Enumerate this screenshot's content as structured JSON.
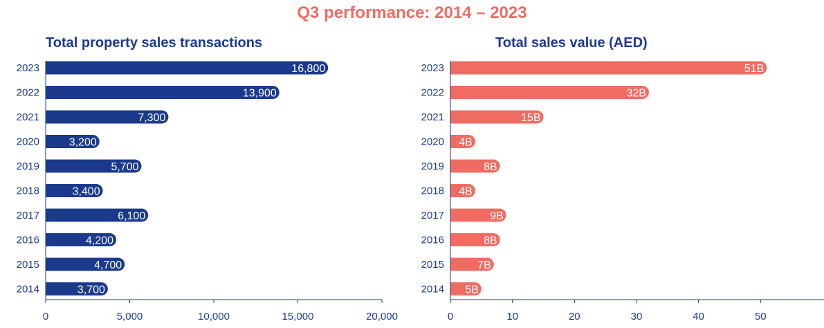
{
  "title": "Q3 performance: 2014 – 2023",
  "chart_data": [
    {
      "type": "bar",
      "orientation": "horizontal",
      "title": "Total property sales transactions",
      "categories": [
        "2023",
        "2022",
        "2021",
        "2020",
        "2019",
        "2018",
        "2017",
        "2016",
        "2015",
        "2014"
      ],
      "values": [
        16800,
        13900,
        7300,
        3200,
        5700,
        3400,
        6100,
        4200,
        4700,
        3700
      ],
      "data_labels": [
        "16,800",
        "13,900",
        "7,300",
        "3,200",
        "5,700",
        "3,400",
        "6,100",
        "4,200",
        "4,700",
        "3,700"
      ],
      "xlim": [
        0,
        20000
      ],
      "xticks": [
        0,
        5000,
        10000,
        15000,
        20000
      ],
      "xtick_labels": [
        "0",
        "5,000",
        "10,000",
        "15,000",
        "20,000"
      ],
      "color": "#1b3a8c",
      "grid": false
    },
    {
      "type": "bar",
      "orientation": "horizontal",
      "title": "Total sales value (AED)",
      "categories": [
        "2023",
        "2022",
        "2021",
        "2020",
        "2019",
        "2018",
        "2017",
        "2016",
        "2015",
        "2014"
      ],
      "values": [
        51,
        32,
        15,
        4,
        8,
        4,
        9,
        8,
        7,
        5
      ],
      "data_labels": [
        "51B",
        "32B",
        "15B",
        "4B",
        "8B",
        "4B",
        "9B",
        "8B",
        "7B",
        "5B"
      ],
      "xlim": [
        0,
        59
      ],
      "xticks": [
        0,
        10,
        20,
        30,
        40,
        50
      ],
      "xtick_labels": [
        "0",
        "10",
        "20",
        "30",
        "40",
        "50"
      ],
      "color": "#f06c63",
      "grid": false
    }
  ]
}
